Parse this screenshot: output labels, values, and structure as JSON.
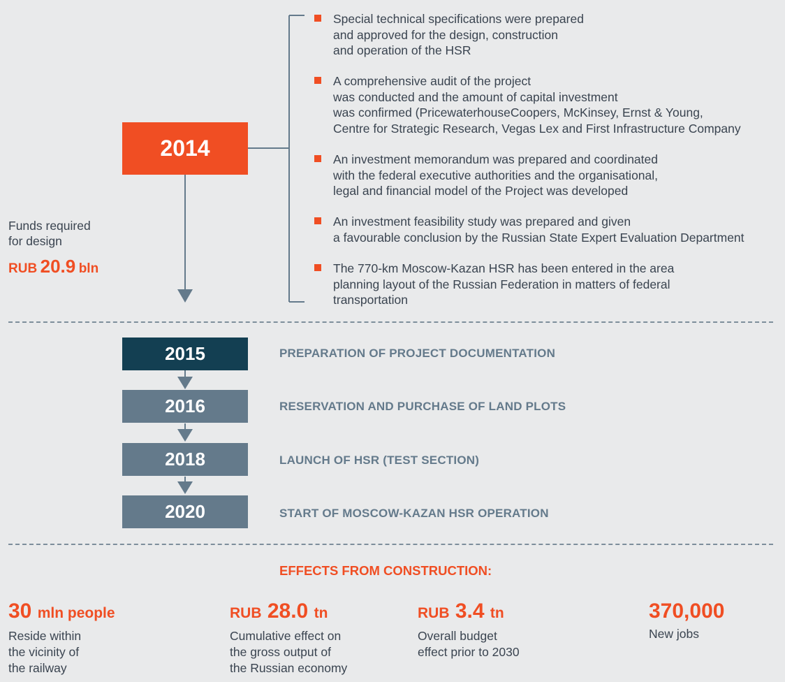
{
  "year_main": "2014",
  "funds": {
    "label": "Funds required\nfor design",
    "prefix": "RUB",
    "value": "20.9",
    "unit": "bln"
  },
  "bullets": [
    "Special technical specifications were prepared\nand approved for the design, construction\nand operation of the HSR",
    "A comprehensive audit of the project\nwas conducted and the amount of capital investment\nwas confirmed (PricewaterhouseCoopers, McKinsey, Ernst & Young,\nCentre for Strategic Research, Vegas Lex and First Infrastructure Company",
    "An investment memorandum was prepared and coordinated\nwith the federal executive authorities and the organisational,\nlegal and financial model of the Project was developed",
    "An investment feasibility study was prepared and given\na favourable conclusion by the Russian State Expert Evaluation Department",
    "The 770-km Moscow-Kazan HSR has been entered in the area\nplanning layout of the Russian Federation in matters of federal\ntransportation"
  ],
  "stages": [
    {
      "year": "2015",
      "label": "PREPARATION OF PROJECT DOCUMENTATION"
    },
    {
      "year": "2016",
      "label": "RESERVATION AND PURCHASE OF LAND PLOTS"
    },
    {
      "year": "2018",
      "label": "LAUNCH OF HSR (TEST SECTION)"
    },
    {
      "year": "2020",
      "label": "START OF MOSCOW-KAZAN HSR OPERATION"
    }
  ],
  "effects_title": "EFFECTS FROM CONSTRUCTION:",
  "effects": [
    {
      "prefix": "",
      "value": "30",
      "unit": "mln people",
      "desc": "Reside within\nthe vicinity of\nthe railway"
    },
    {
      "prefix": "RUB",
      "value": "28.0",
      "unit": "tn",
      "desc": "Cumulative effect on\nthe gross output of\nthe Russian economy"
    },
    {
      "prefix": "RUB",
      "value": "3.4",
      "unit": "tn",
      "desc": "Overall budget\neffect prior to 2030"
    },
    {
      "prefix": "",
      "value": "370,000",
      "unit": "",
      "desc": "New jobs"
    }
  ],
  "colors": {
    "accent": "#f04e23",
    "dark_box": "#133f52",
    "gray_box": "#647a8b",
    "text": "#3a4450",
    "background": "#e9eaeb"
  }
}
